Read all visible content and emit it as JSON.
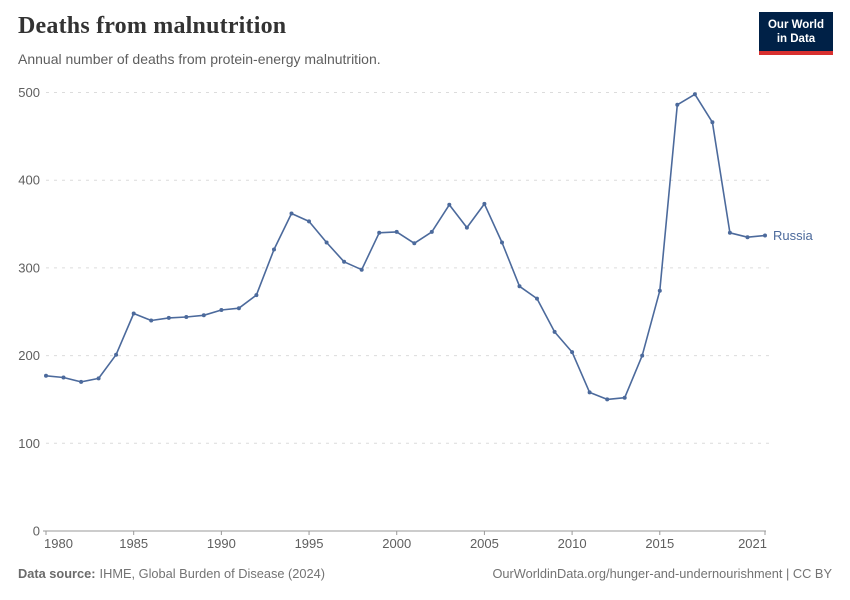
{
  "header": {
    "title": "Deaths from malnutrition",
    "subtitle": "Annual number of deaths from protein-energy malnutrition."
  },
  "logo": {
    "line1": "Our World",
    "line2": "in Data",
    "bg_color": "#002147",
    "accent_color": "#d8302f"
  },
  "chart_data": {
    "type": "line",
    "title": "Deaths from malnutrition",
    "subtitle": "Annual number of deaths from protein-energy malnutrition.",
    "x": [
      1980,
      1981,
      1982,
      1983,
      1984,
      1985,
      1986,
      1987,
      1988,
      1989,
      1990,
      1991,
      1992,
      1993,
      1994,
      1995,
      1996,
      1997,
      1998,
      1999,
      2000,
      2001,
      2002,
      2003,
      2004,
      2005,
      2006,
      2007,
      2008,
      2009,
      2010,
      2011,
      2012,
      2013,
      2014,
      2015,
      2016,
      2017,
      2018,
      2019,
      2020,
      2021
    ],
    "series": [
      {
        "name": "Russia",
        "color": "#4c6a9c",
        "values": [
          177,
          175,
          170,
          174,
          201,
          248,
          240,
          243,
          244,
          246,
          252,
          254,
          269,
          321,
          362,
          353,
          329,
          307,
          298,
          340,
          341,
          328,
          341,
          372,
          346,
          373,
          329,
          279,
          265,
          227,
          204,
          158,
          150,
          152,
          200,
          274,
          486,
          498,
          466,
          340,
          335,
          337
        ]
      }
    ],
    "xlabel": "",
    "ylabel": "",
    "ylim": [
      0,
      500
    ],
    "yticks": [
      0,
      100,
      200,
      300,
      400,
      500
    ],
    "xticks": [
      1980,
      1985,
      1990,
      1995,
      2000,
      2005,
      2010,
      2015,
      2021
    ],
    "grid": "horizontal-dashed",
    "legend": "line-end-label"
  },
  "colors": {
    "series": "#4c6a9c",
    "axis": "#999999",
    "gridline": "#dcdcdc",
    "tick_label": "#5f5f5f"
  },
  "footer": {
    "source_label": "Data source:",
    "source_value": "IHME, Global Burden of Disease (2024)",
    "credit": "OurWorldinData.org/hunger-and-undernourishment | CC BY"
  }
}
